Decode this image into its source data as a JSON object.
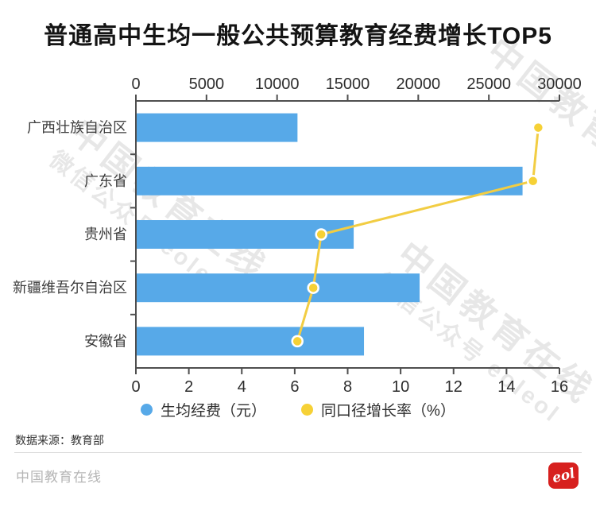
{
  "title": "普通高中生均一般公共预算教育经费增长TOP5",
  "chart_data": {
    "type": "bar",
    "orientation": "horizontal",
    "title": "普通高中生均一般公共预算教育经费增长TOP5",
    "categories": [
      "广西壮族自治区",
      "广东省",
      "贵州省",
      "新疆维吾尔自治区",
      "安徽省"
    ],
    "series": [
      {
        "name": "生均经费（元）",
        "type": "bar",
        "axis": "top",
        "values": [
          11390,
          27330,
          15370,
          20040,
          16100
        ]
      },
      {
        "name": "同口径增长率（%）",
        "type": "line",
        "axis": "bottom",
        "values": [
          15.2,
          15.0,
          7.0,
          6.7,
          6.1
        ]
      }
    ],
    "top_axis": {
      "min": 0,
      "max": 30000,
      "ticks": [
        0,
        5000,
        10000,
        15000,
        20000,
        25000,
        30000
      ]
    },
    "bottom_axis": {
      "min": 0,
      "max": 16,
      "ticks": [
        0,
        2,
        4,
        6,
        8,
        10,
        12,
        14,
        16
      ]
    },
    "grid": false,
    "legend_position": "bottom"
  },
  "legend": [
    {
      "label": "生均经费（元）",
      "color": "#57a9e8"
    },
    {
      "label": "同口径增长率（%）",
      "color": "#f6d136"
    }
  ],
  "colors": {
    "bar": "#57a9e8",
    "line": "#f2cd43",
    "dot": "#f6d136",
    "dot_ring": "#ffffff",
    "axis": "#4f4f4f",
    "tick_label": "#2d2d2d",
    "category_label": "#3d3d3d",
    "title": "#141414",
    "logo_red": "#d7201e",
    "divider": "#dcdcdc",
    "brand": "#b5b5b5",
    "watermark": "#cccccc"
  },
  "source_note": "数据来源：教育部",
  "footer": {
    "brand": "中国教育在线",
    "logo_text": "eol"
  },
  "watermark": {
    "line1": "中国教育在线",
    "line2": "微信公众号 eoleol"
  }
}
